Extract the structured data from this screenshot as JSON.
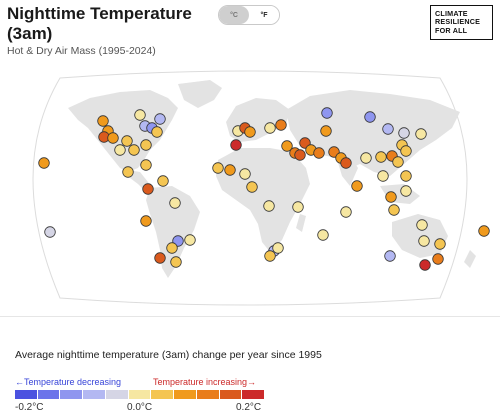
{
  "header": {
    "title": "Nighttime Temperature (3am)",
    "subtitle": "Hot & Dry Air Mass (1995-2024)"
  },
  "unit_toggle": {
    "options": [
      "°C",
      "°F"
    ],
    "selected": "°C"
  },
  "logo": {
    "lines": [
      "CLIMATE",
      "RESILIENCE",
      "FOR ALL"
    ]
  },
  "legend": {
    "title": "Average nighttime temperature (3am) change per year since 1995",
    "decreasing_label": "←Temperature decreasing",
    "increasing_label": "Temperature increasing→",
    "tick_labels": [
      "-0.2°C",
      "0.0°C",
      "0.2°C"
    ],
    "scale_colors": [
      "#4b52e0",
      "#6c74ea",
      "#8f96ef",
      "#b3b8f2",
      "#d5d5e5",
      "#f6e7a2",
      "#f4c552",
      "#f09a1d",
      "#e97d1b",
      "#da5a1d",
      "#cc2a2a"
    ]
  },
  "colors": {
    "land": "#e3e3e3",
    "ocean": "#ffffff",
    "decrease_text": "#3845d8",
    "increase_text": "#cc2a2a"
  }
}
